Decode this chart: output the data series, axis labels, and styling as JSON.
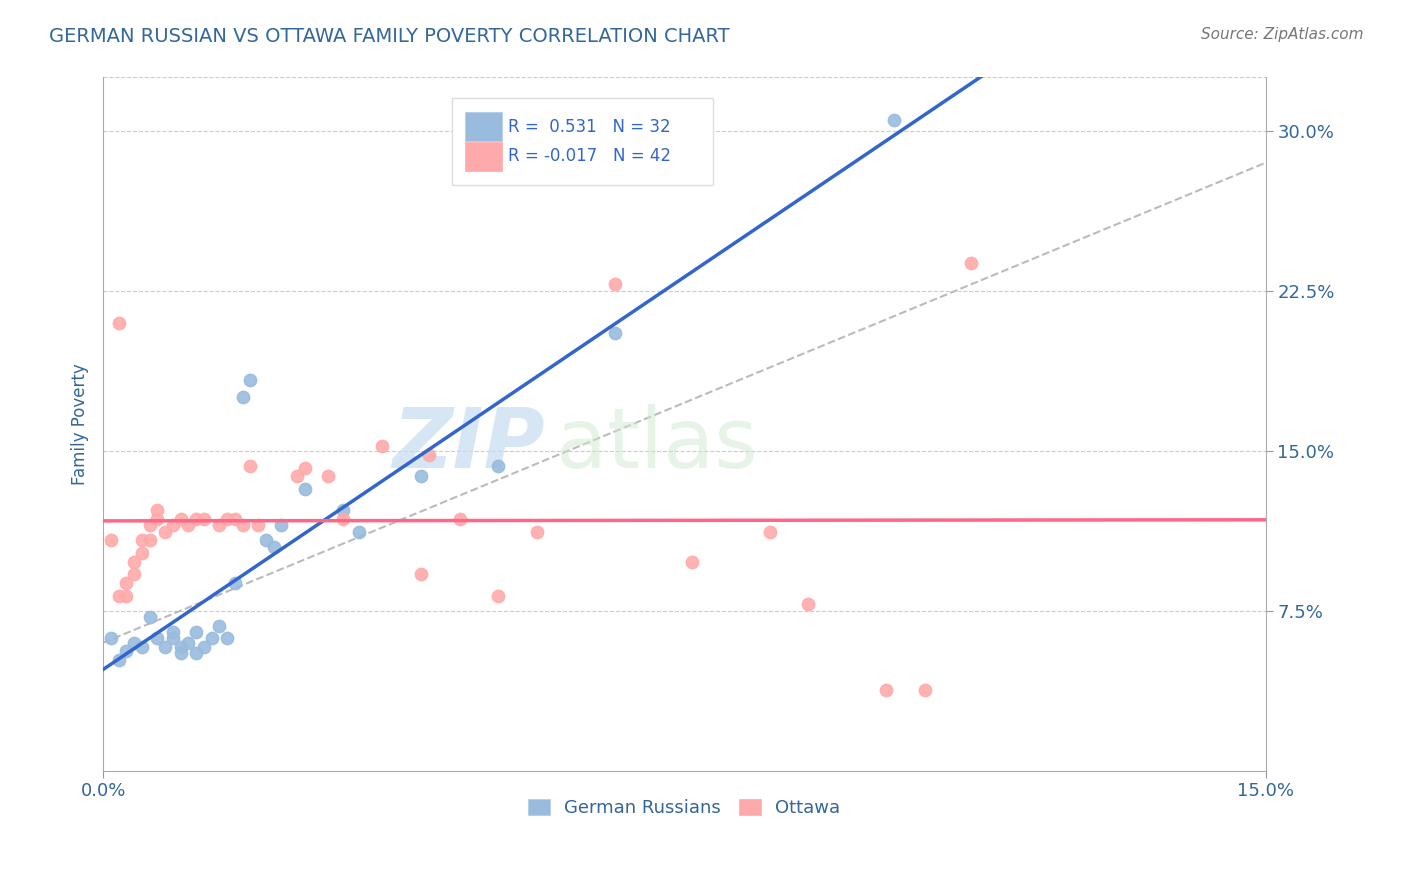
{
  "title": "GERMAN RUSSIAN VS OTTAWA FAMILY POVERTY CORRELATION CHART",
  "source_text": "Source: ZipAtlas.com",
  "ylabel": "Family Poverty",
  "xlim": [
    0.0,
    0.15
  ],
  "ylim": [
    0.0,
    0.325
  ],
  "xticklabels": [
    "0.0%",
    "15.0%"
  ],
  "ytick_positions": [
    0.075,
    0.15,
    0.225,
    0.3
  ],
  "ytick_labels": [
    "7.5%",
    "15.0%",
    "22.5%",
    "30.0%"
  ],
  "legend_r_blue": "0.531",
  "legend_n_blue": "32",
  "legend_r_pink": "-0.017",
  "legend_n_pink": "42",
  "legend_label_blue": "German Russians",
  "legend_label_pink": "Ottawa",
  "blue_color": "#99BBDD",
  "pink_color": "#FFAAAA",
  "blue_line_color": "#3366CC",
  "pink_line_color": "#FF6688",
  "trend_line_color": "#BBBBBB",
  "watermark_zip": "ZIP",
  "watermark_atlas": "atlas",
  "blue_scatter": [
    [
      0.001,
      0.062
    ],
    [
      0.002,
      0.052
    ],
    [
      0.003,
      0.056
    ],
    [
      0.004,
      0.06
    ],
    [
      0.005,
      0.058
    ],
    [
      0.006,
      0.072
    ],
    [
      0.007,
      0.062
    ],
    [
      0.008,
      0.058
    ],
    [
      0.009,
      0.065
    ],
    [
      0.009,
      0.062
    ],
    [
      0.01,
      0.058
    ],
    [
      0.01,
      0.055
    ],
    [
      0.011,
      0.06
    ],
    [
      0.012,
      0.055
    ],
    [
      0.012,
      0.065
    ],
    [
      0.013,
      0.058
    ],
    [
      0.014,
      0.062
    ],
    [
      0.015,
      0.068
    ],
    [
      0.016,
      0.062
    ],
    [
      0.017,
      0.088
    ],
    [
      0.018,
      0.175
    ],
    [
      0.019,
      0.183
    ],
    [
      0.021,
      0.108
    ],
    [
      0.022,
      0.105
    ],
    [
      0.023,
      0.115
    ],
    [
      0.026,
      0.132
    ],
    [
      0.031,
      0.122
    ],
    [
      0.033,
      0.112
    ],
    [
      0.041,
      0.138
    ],
    [
      0.051,
      0.143
    ],
    [
      0.066,
      0.205
    ],
    [
      0.102,
      0.305
    ]
  ],
  "pink_scatter": [
    [
      0.001,
      0.108
    ],
    [
      0.002,
      0.082
    ],
    [
      0.002,
      0.21
    ],
    [
      0.003,
      0.082
    ],
    [
      0.003,
      0.088
    ],
    [
      0.004,
      0.092
    ],
    [
      0.004,
      0.098
    ],
    [
      0.005,
      0.102
    ],
    [
      0.005,
      0.108
    ],
    [
      0.006,
      0.108
    ],
    [
      0.006,
      0.115
    ],
    [
      0.007,
      0.118
    ],
    [
      0.007,
      0.122
    ],
    [
      0.008,
      0.112
    ],
    [
      0.009,
      0.115
    ],
    [
      0.01,
      0.118
    ],
    [
      0.011,
      0.115
    ],
    [
      0.012,
      0.118
    ],
    [
      0.013,
      0.118
    ],
    [
      0.015,
      0.115
    ],
    [
      0.016,
      0.118
    ],
    [
      0.017,
      0.118
    ],
    [
      0.018,
      0.115
    ],
    [
      0.019,
      0.143
    ],
    [
      0.02,
      0.115
    ],
    [
      0.025,
      0.138
    ],
    [
      0.026,
      0.142
    ],
    [
      0.029,
      0.138
    ],
    [
      0.031,
      0.118
    ],
    [
      0.036,
      0.152
    ],
    [
      0.041,
      0.092
    ],
    [
      0.042,
      0.148
    ],
    [
      0.046,
      0.118
    ],
    [
      0.051,
      0.082
    ],
    [
      0.056,
      0.112
    ],
    [
      0.066,
      0.228
    ],
    [
      0.076,
      0.098
    ],
    [
      0.086,
      0.112
    ],
    [
      0.091,
      0.078
    ],
    [
      0.101,
      0.038
    ],
    [
      0.106,
      0.038
    ],
    [
      0.112,
      0.238
    ]
  ],
  "background_color": "#FFFFFF",
  "grid_color": "#CCCCCC",
  "title_color": "#336699",
  "tick_color": "#336699"
}
